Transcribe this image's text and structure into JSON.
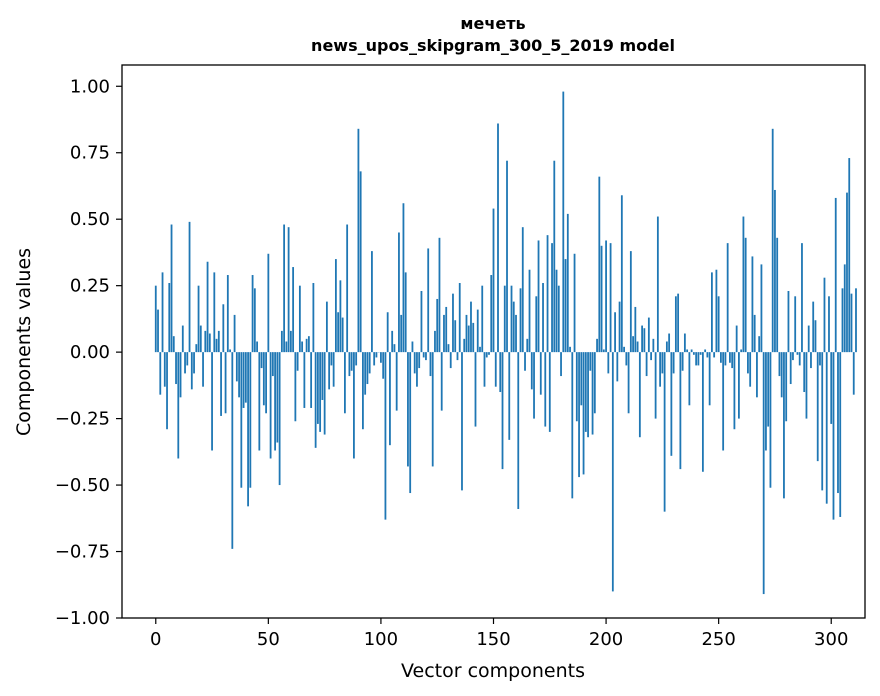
{
  "chart_data": {
    "type": "bar",
    "title": "мечеть",
    "subtitle": "news_upos_skipgram_300_5_2019 model",
    "xlabel": "Vector components",
    "ylabel": "Components values",
    "xlim": [
      -15,
      315
    ],
    "ylim": [
      -1.0,
      1.08
    ],
    "xticks": [
      0,
      50,
      100,
      150,
      200,
      250,
      300
    ],
    "xtick_labels": [
      "0",
      "50",
      "100",
      "150",
      "200",
      "250",
      "300"
    ],
    "yticks": [
      1.0,
      0.75,
      0.5,
      0.25,
      0.0,
      -0.25,
      -0.5,
      -0.75,
      -1.0
    ],
    "ytick_labels": [
      "1.00",
      "0.75",
      "0.50",
      "0.25",
      "0.00",
      "−0.25",
      "−0.50",
      "−0.75",
      "−1.00"
    ],
    "bar_color": "#1f77b4",
    "grid": false,
    "values": [
      0.25,
      0.16,
      -0.16,
      0.3,
      -0.13,
      -0.29,
      0.26,
      0.48,
      0.06,
      -0.12,
      -0.4,
      -0.17,
      0.1,
      -0.08,
      -0.05,
      0.49,
      -0.14,
      -0.08,
      0.03,
      0.25,
      0.1,
      -0.13,
      0.08,
      0.34,
      0.07,
      -0.37,
      0.3,
      0.05,
      0.08,
      -0.24,
      0.18,
      -0.23,
      0.29,
      0.01,
      -0.74,
      0.14,
      -0.11,
      -0.17,
      -0.51,
      -0.21,
      -0.19,
      -0.58,
      -0.51,
      0.29,
      0.24,
      0.04,
      -0.37,
      -0.06,
      -0.2,
      -0.23,
      0.37,
      -0.4,
      -0.09,
      -0.37,
      -0.34,
      -0.5,
      0.08,
      0.48,
      0.04,
      0.47,
      0.08,
      0.32,
      -0.26,
      -0.07,
      0.25,
      0.04,
      -0.21,
      0.05,
      0.06,
      -0.21,
      0.26,
      -0.36,
      -0.27,
      -0.3,
      -0.18,
      -0.31,
      0.19,
      -0.14,
      -0.05,
      -0.13,
      0.35,
      0.15,
      0.27,
      0.13,
      -0.23,
      0.48,
      -0.09,
      -0.07,
      -0.4,
      -0.05,
      0.84,
      0.68,
      -0.29,
      -0.16,
      -0.12,
      -0.08,
      0.38,
      -0.05,
      -0.02,
      0.0,
      -0.04,
      -0.1,
      -0.63,
      0.15,
      -0.35,
      0.08,
      0.03,
      -0.22,
      0.45,
      0.14,
      0.56,
      0.3,
      -0.43,
      -0.53,
      0.04,
      -0.08,
      -0.13,
      -0.06,
      0.23,
      -0.02,
      -0.03,
      0.39,
      -0.09,
      -0.43,
      0.08,
      0.2,
      0.43,
      -0.22,
      0.14,
      0.17,
      0.03,
      -0.06,
      0.22,
      0.12,
      -0.03,
      0.26,
      -0.52,
      0.05,
      0.14,
      0.1,
      0.19,
      0.11,
      -0.28,
      0.16,
      0.02,
      0.25,
      -0.13,
      -0.02,
      -0.01,
      0.29,
      0.54,
      -0.13,
      0.86,
      -0.15,
      -0.44,
      0.25,
      0.72,
      -0.33,
      0.25,
      0.19,
      0.14,
      -0.59,
      0.24,
      0.47,
      -0.07,
      0.05,
      0.31,
      -0.14,
      -0.25,
      0.21,
      0.42,
      -0.16,
      0.26,
      -0.28,
      0.44,
      -0.3,
      0.41,
      0.72,
      0.31,
      0.25,
      -0.09,
      0.98,
      0.35,
      0.52,
      0.02,
      -0.55,
      0.37,
      -0.26,
      -0.47,
      -0.2,
      -0.46,
      -0.3,
      -0.32,
      -0.07,
      -0.31,
      -0.23,
      0.05,
      0.66,
      0.4,
      0.01,
      0.42,
      -0.08,
      0.41,
      -0.9,
      0.15,
      -0.11,
      0.19,
      0.59,
      0.02,
      -0.05,
      -0.23,
      0.38,
      0.06,
      0.17,
      0.04,
      -0.32,
      0.1,
      0.09,
      -0.09,
      0.13,
      -0.03,
      0.05,
      -0.25,
      0.51,
      -0.13,
      -0.08,
      -0.6,
      0.04,
      0.07,
      -0.39,
      -0.08,
      0.21,
      0.22,
      -0.44,
      -0.07,
      0.07,
      0.01,
      -0.2,
      0.01,
      -0.01,
      -0.05,
      -0.05,
      -0.01,
      -0.45,
      0.01,
      -0.02,
      -0.2,
      0.3,
      -0.02,
      0.31,
      0.21,
      -0.04,
      -0.37,
      -0.05,
      0.41,
      -0.04,
      -0.06,
      -0.29,
      0.1,
      -0.25,
      0.01,
      0.51,
      0.43,
      -0.08,
      -0.13,
      0.36,
      0.14,
      -0.17,
      0.06,
      0.33,
      -0.91,
      -0.37,
      -0.28,
      -0.51,
      0.84,
      0.61,
      0.43,
      -0.09,
      -0.17,
      -0.55,
      -0.26,
      0.23,
      -0.12,
      -0.03,
      0.21,
      -0.01,
      -0.05,
      0.41,
      -0.15,
      -0.25,
      0.1,
      -0.06,
      0.19,
      0.12,
      -0.41,
      -0.05,
      -0.52,
      0.28,
      -0.57,
      0.21,
      -0.27,
      -0.63,
      0.58,
      -0.53,
      -0.62,
      0.24,
      0.33,
      0.6,
      0.73,
      0.22,
      -0.16,
      0.24
    ]
  }
}
